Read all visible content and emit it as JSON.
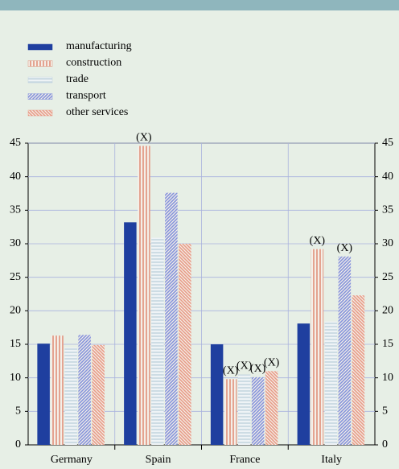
{
  "chart_data": {
    "type": "bar",
    "categories": [
      "Germany",
      "Spain",
      "France",
      "Italy"
    ],
    "series": [
      {
        "name": "manufacturing",
        "color": "#1f3f9f",
        "pattern": "solid",
        "values": [
          15.1,
          33.2,
          15.0,
          18.1
        ],
        "value_labels": [
          null,
          null,
          null,
          null
        ]
      },
      {
        "name": "construction",
        "color": "#e0907a",
        "pattern": "vertical",
        "values": [
          16.3,
          44.6,
          9.8,
          29.2
        ],
        "value_labels": [
          null,
          "(X)",
          "(X)",
          "(X)"
        ]
      },
      {
        "name": "trade",
        "color": "#c5d6e0",
        "pattern": "horizontal",
        "values": [
          14.5,
          30.9,
          10.5,
          18.4
        ],
        "value_labels": [
          null,
          null,
          "(X)",
          null
        ]
      },
      {
        "name": "transport",
        "color": "#8594dc",
        "pattern": "diagonal",
        "values": [
          16.4,
          37.6,
          10.1,
          28.1
        ],
        "value_labels": [
          null,
          null,
          "(X)",
          "(X)"
        ]
      },
      {
        "name": "other services",
        "color": "#e89c88",
        "pattern": "backdiagonal",
        "values": [
          14.9,
          30.0,
          11.0,
          22.3
        ],
        "value_labels": [
          null,
          null,
          "(X)",
          null
        ]
      }
    ],
    "ylim": [
      0,
      45
    ],
    "yticks": [
      0,
      5,
      10,
      15,
      20,
      25,
      30,
      35,
      40,
      45
    ],
    "y2lim": [
      0,
      45
    ],
    "y2ticks": [
      0,
      5,
      10,
      15,
      20,
      25,
      30,
      35,
      40,
      45
    ],
    "grid": true
  }
}
